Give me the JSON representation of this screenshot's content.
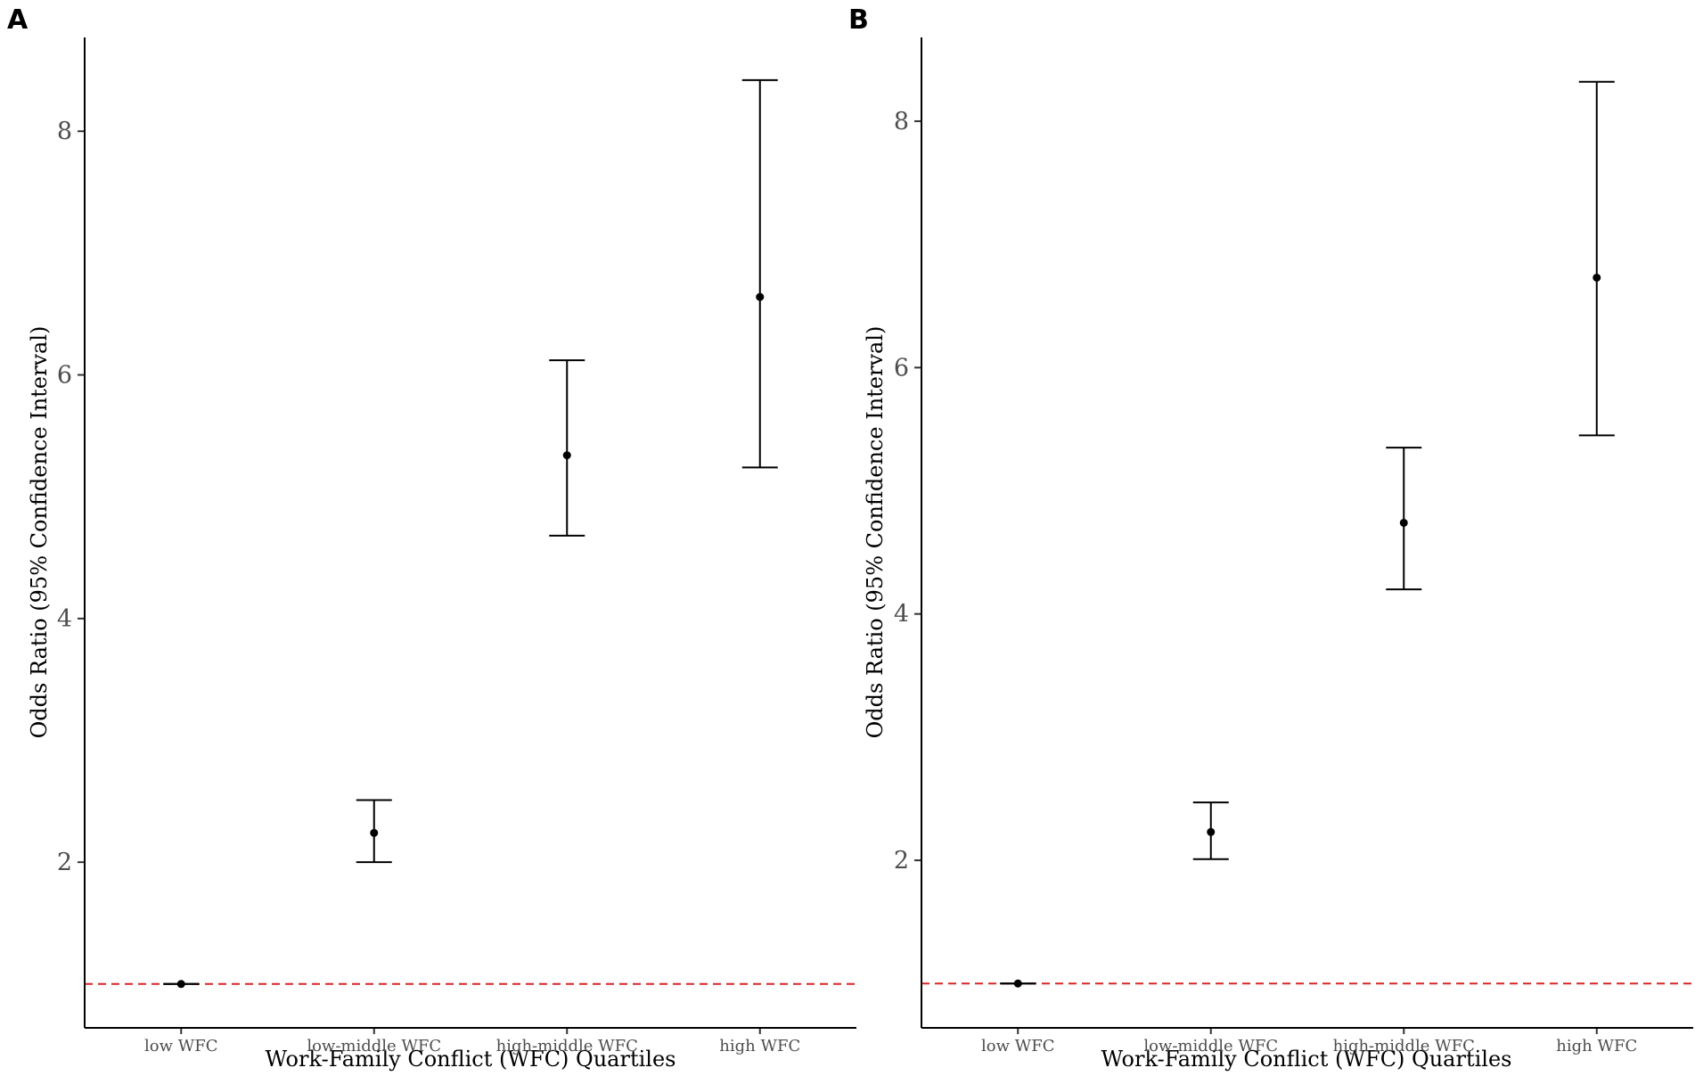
{
  "colors": {
    "reference_line": "#d62728",
    "points": "#000000"
  },
  "chart_data": [
    {
      "panel": "A",
      "type": "errorbar",
      "xlabel": "Work-Family Conflict (WFC) Quartiles",
      "ylabel": "Odds Ratio (95% Confidence Interval)",
      "categories": [
        "low WFC",
        "low-middle WFC",
        "high-middle WFC",
        "high WFC"
      ],
      "values": [
        1.0,
        2.24,
        5.34,
        6.64
      ],
      "lower": [
        1.0,
        2.0,
        4.68,
        5.24
      ],
      "upper": [
        1.0,
        2.51,
        6.12,
        8.42
      ],
      "reference_line": 1.0,
      "yticks": [
        "2",
        "4",
        "6",
        "8"
      ],
      "ylim": [
        0.64,
        8.77
      ],
      "grid": false
    },
    {
      "panel": "B",
      "type": "errorbar",
      "xlabel": "Work-Family Conflict (WFC) Quartiles",
      "ylabel": "Odds Ratio (95% Confidence Interval)",
      "categories": [
        "low WFC",
        "low-middle WFC",
        "high-middle WFC",
        "high WFC"
      ],
      "values": [
        1.0,
        2.23,
        4.74,
        6.73
      ],
      "lower": [
        1.0,
        2.01,
        4.2,
        5.45
      ],
      "upper": [
        1.0,
        2.47,
        5.35,
        8.32
      ],
      "reference_line": 1.0,
      "yticks": [
        "2",
        "4",
        "6",
        "8"
      ],
      "ylim": [
        0.64,
        8.68
      ],
      "grid": false
    }
  ]
}
